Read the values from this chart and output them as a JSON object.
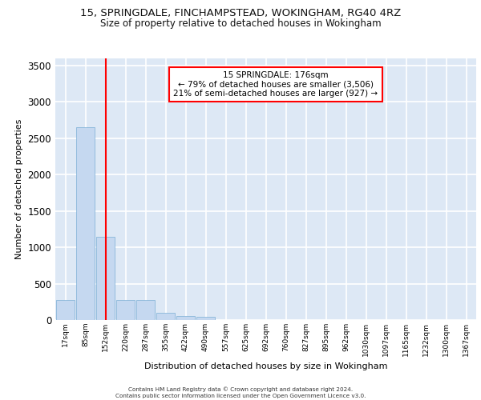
{
  "title1": "15, SPRINGDALE, FINCHAMPSTEAD, WOKINGHAM, RG40 4RZ",
  "title2": "Size of property relative to detached houses in Wokingham",
  "xlabel": "Distribution of detached houses by size in Wokingham",
  "ylabel": "Number of detached properties",
  "bar_color": "#c5d8f0",
  "bar_edge_color": "#7aadd4",
  "background_color": "#dde8f5",
  "grid_color": "#ffffff",
  "categories": [
    "17sqm",
    "85sqm",
    "152sqm",
    "220sqm",
    "287sqm",
    "355sqm",
    "422sqm",
    "490sqm",
    "557sqm",
    "625sqm",
    "692sqm",
    "760sqm",
    "827sqm",
    "895sqm",
    "962sqm",
    "1030sqm",
    "1097sqm",
    "1165sqm",
    "1232sqm",
    "1300sqm",
    "1367sqm"
  ],
  "values": [
    270,
    2650,
    1140,
    280,
    275,
    100,
    55,
    40,
    0,
    0,
    0,
    0,
    0,
    0,
    0,
    0,
    0,
    0,
    0,
    0,
    0
  ],
  "ylim": [
    0,
    3600
  ],
  "yticks": [
    0,
    500,
    1000,
    1500,
    2000,
    2500,
    3000,
    3500
  ],
  "property_line_x": 2.0,
  "annotation_title": "15 SPRINGDALE: 176sqm",
  "annotation_line1": "← 79% of detached houses are smaller (3,506)",
  "annotation_line2": "21% of semi-detached houses are larger (927) →",
  "footer1": "Contains HM Land Registry data © Crown copyright and database right 2024.",
  "footer2": "Contains public sector information licensed under the Open Government Licence v3.0."
}
